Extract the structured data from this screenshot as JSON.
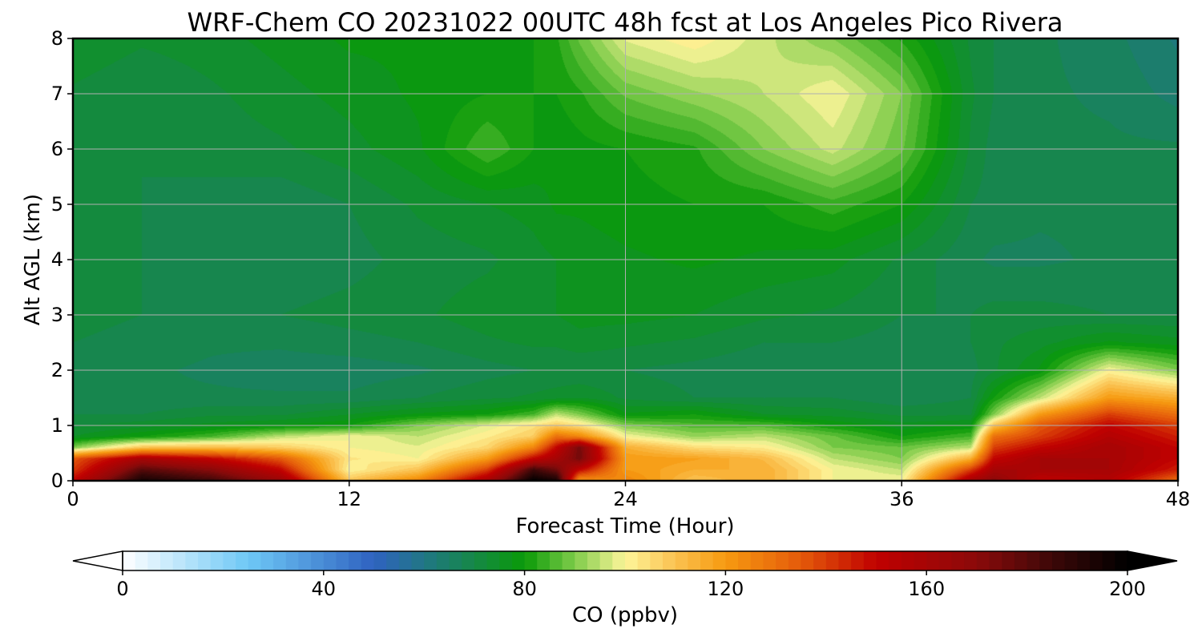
{
  "chart_data": {
    "type": "heatmap",
    "title": "WRF-Chem CO  20231022 00UTC 48h fcst at Los Angeles Pico Rivera",
    "xlabel": "Forecast Time (Hour)",
    "ylabel": "Alt AGL (km)",
    "xlim": [
      0,
      48
    ],
    "ylim": [
      0,
      8
    ],
    "xticks": [
      0,
      12,
      24,
      36,
      48
    ],
    "yticks": [
      0,
      1,
      2,
      3,
      4,
      5,
      6,
      7,
      8
    ],
    "grid": true,
    "x": [
      0,
      3,
      6,
      9,
      12,
      15,
      18,
      20,
      21,
      22,
      24,
      27,
      30,
      33,
      36,
      39,
      40,
      42,
      45,
      48
    ],
    "y": [
      0,
      0.2,
      0.4,
      0.6,
      0.8,
      1.0,
      1.2,
      1.5,
      2.0,
      2.5,
      3.0,
      4.0,
      5.0,
      6.0,
      7.0,
      8.0
    ],
    "values": [
      [
        150,
        195,
        185,
        165,
        110,
        125,
        160,
        200,
        195,
        120,
        125,
        110,
        115,
        100,
        100,
        160,
        170,
        150,
        155,
        130
      ],
      [
        140,
        180,
        170,
        150,
        100,
        110,
        140,
        185,
        175,
        150,
        120,
        115,
        115,
        100,
        95,
        140,
        160,
        160,
        160,
        145
      ],
      [
        135,
        160,
        150,
        135,
        103,
        100,
        120,
        150,
        160,
        175,
        120,
        118,
        112,
        95,
        90,
        115,
        150,
        160,
        160,
        150
      ],
      [
        90,
        110,
        112,
        108,
        100,
        98,
        106,
        125,
        150,
        175,
        115,
        105,
        102,
        90,
        88,
        95,
        140,
        150,
        160,
        150
      ],
      [
        75,
        80,
        85,
        95,
        100,
        95,
        102,
        108,
        130,
        125,
        100,
        92,
        95,
        88,
        80,
        85,
        130,
        140,
        155,
        145
      ],
      [
        72,
        74,
        76,
        78,
        80,
        90,
        98,
        104,
        108,
        104,
        90,
        86,
        86,
        80,
        76,
        78,
        110,
        135,
        150,
        140
      ],
      [
        70,
        70,
        72,
        72,
        75,
        78,
        80,
        85,
        95,
        90,
        78,
        80,
        75,
        74,
        72,
        72,
        90,
        120,
        140,
        130
      ],
      [
        68,
        68,
        68,
        68,
        68,
        70,
        72,
        73,
        74,
        75,
        72,
        70,
        70,
        70,
        68,
        70,
        80,
        95,
        120,
        115
      ],
      [
        69,
        68,
        67,
        66,
        66,
        67,
        69,
        70,
        70,
        70,
        70,
        69,
        68,
        68,
        68,
        69,
        72,
        78,
        100,
        90
      ],
      [
        70,
        69,
        68,
        68,
        69,
        70,
        72,
        73,
        73,
        74,
        73,
        72,
        70,
        70,
        69,
        70,
        72,
        74,
        78,
        76
      ],
      [
        71,
        70,
        69,
        70,
        71,
        72,
        74,
        75,
        75,
        76,
        76,
        75,
        73,
        72,
        70,
        70,
        71,
        71,
        70,
        70
      ],
      [
        70,
        70,
        69,
        68,
        69,
        71,
        72,
        74,
        75,
        76,
        77,
        78,
        77,
        76,
        72,
        68,
        67,
        67,
        68,
        68
      ],
      [
        70,
        70,
        69,
        68,
        70,
        73,
        75,
        76,
        78,
        78,
        79,
        80,
        80,
        84,
        80,
        70,
        69,
        68,
        68,
        68
      ],
      [
        70,
        70,
        71,
        72,
        74,
        77,
        85,
        80,
        78,
        79,
        80,
        82,
        90,
        96,
        88,
        72,
        69,
        68,
        68,
        68
      ],
      [
        72,
        70,
        72,
        74,
        76,
        78,
        80,
        80,
        80,
        82,
        88,
        92,
        95,
        100,
        90,
        73,
        70,
        68,
        67,
        64
      ],
      [
        75,
        73,
        74,
        76,
        78,
        78,
        78,
        80,
        82,
        88,
        98,
        102,
        96,
        90,
        82,
        72,
        70,
        68,
        66,
        62
      ]
    ],
    "colorbar": {
      "label": "CO  (ppbv)",
      "ticks": [
        0,
        40,
        80,
        120,
        160,
        200
      ],
      "min": 0,
      "max": 200,
      "step": 2.5,
      "extend": "both",
      "colormap_stops": [
        [
          0,
          "#ffffff"
        ],
        [
          25,
          "#6ec8f6"
        ],
        [
          50,
          "#2f62c0"
        ],
        [
          62,
          "#1e7a78"
        ],
        [
          80,
          "#0a9a08"
        ],
        [
          90,
          "#7fcc4a"
        ],
        [
          100,
          "#fdf59a"
        ],
        [
          110,
          "#fbc251"
        ],
        [
          120,
          "#f69a10"
        ],
        [
          135,
          "#e45a0a"
        ],
        [
          150,
          "#c00000"
        ],
        [
          170,
          "#8b0a0a"
        ],
        [
          185,
          "#3c0808"
        ],
        [
          200,
          "#000000"
        ]
      ]
    }
  }
}
